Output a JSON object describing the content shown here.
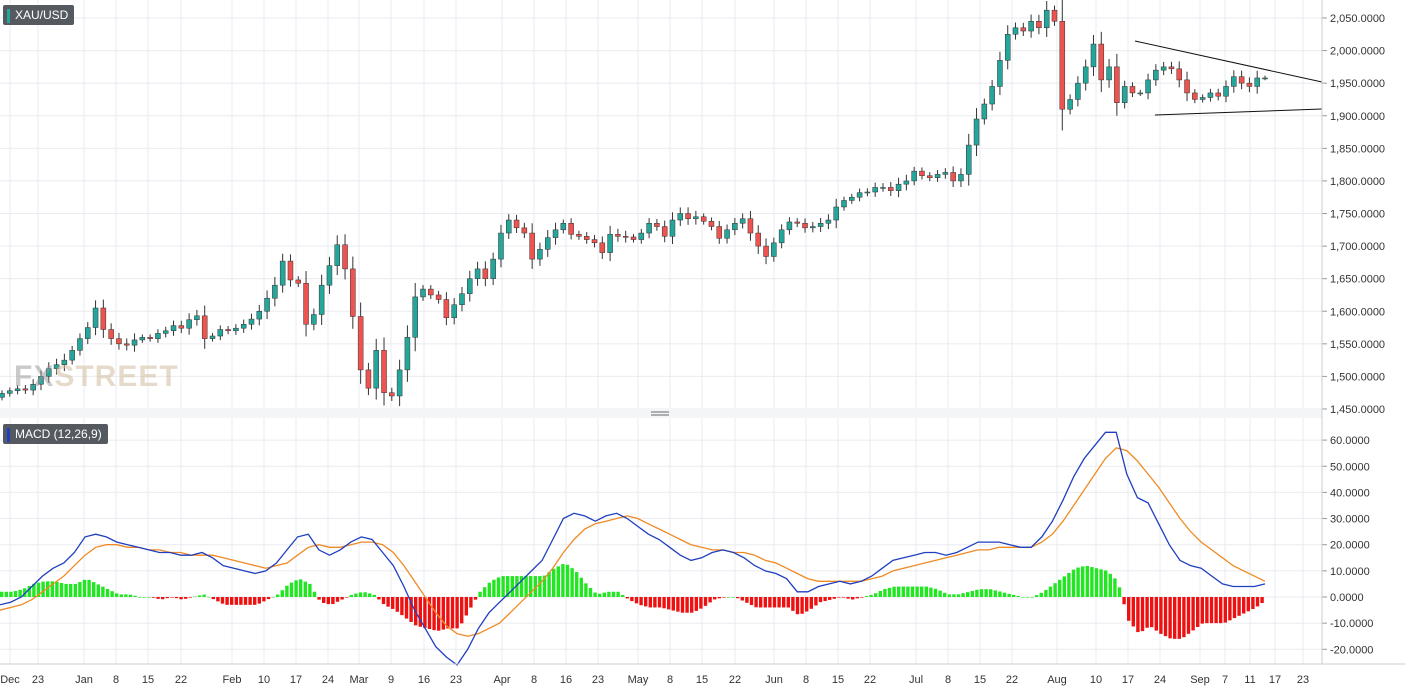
{
  "panels": {
    "main_label": "XAU/USD",
    "macd_label": "MACD (12,26,9)",
    "watermark_a": "FX",
    "watermark_b": "STREET"
  },
  "colors": {
    "up": "#26a69a",
    "down": "#ef5350",
    "macd_line": "#1f3fbf",
    "signal_line": "#f08a24",
    "hist_up": "#22e622",
    "hist_down": "#ee1111",
    "grid": "#e9ebf0"
  },
  "chart_data": [
    {
      "type": "candlestick",
      "title": "XAU/USD",
      "ylim": [
        1450,
        2070
      ],
      "y_ticks": [
        "2,050.0000",
        "2,000.0000",
        "1,950.0000",
        "1,900.0000",
        "1,850.0000",
        "1,800.0000",
        "1,750.0000",
        "1,700.0000",
        "1,650.0000",
        "1,600.0000",
        "1,550.0000",
        "1,500.0000",
        "1,450.0000"
      ],
      "x_ticks": [
        "Dec",
        "23",
        "Jan",
        "8",
        "15",
        "22",
        "Feb",
        "10",
        "17",
        "24",
        "Mar",
        "9",
        "16",
        "23",
        "Apr",
        "8",
        "16",
        "23",
        "May",
        "8",
        "15",
        "22",
        "Jun",
        "8",
        "15",
        "22",
        "Jul",
        "8",
        "15",
        "22",
        "Aug",
        "10",
        "17",
        "24",
        "Sep",
        "7",
        "11",
        "17",
        "23"
      ],
      "close": [
        1474,
        1478,
        1481,
        1479,
        1488,
        1500,
        1512,
        1518,
        1525,
        1540,
        1558,
        1575,
        1605,
        1572,
        1558,
        1550,
        1548,
        1556,
        1560,
        1558,
        1566,
        1570,
        1578,
        1574,
        1587,
        1593,
        1558,
        1562,
        1572,
        1570,
        1574,
        1580,
        1588,
        1600,
        1620,
        1640,
        1677,
        1648,
        1643,
        1580,
        1595,
        1640,
        1670,
        1702,
        1665,
        1592,
        1510,
        1482,
        1540,
        1475,
        1470,
        1510,
        1560,
        1622,
        1634,
        1625,
        1618,
        1590,
        1610,
        1627,
        1650,
        1665,
        1650,
        1680,
        1720,
        1740,
        1728,
        1720,
        1680,
        1695,
        1713,
        1725,
        1735,
        1718,
        1715,
        1710,
        1705,
        1690,
        1718,
        1715,
        1714,
        1710,
        1720,
        1735,
        1730,
        1715,
        1740,
        1750,
        1742,
        1745,
        1738,
        1730,
        1712,
        1725,
        1735,
        1742,
        1720,
        1700,
        1684,
        1705,
        1725,
        1737,
        1735,
        1728,
        1730,
        1735,
        1740,
        1760,
        1770,
        1775,
        1782,
        1783,
        1790,
        1790,
        1785,
        1795,
        1800,
        1815,
        1808,
        1805,
        1810,
        1813,
        1800,
        1810,
        1855,
        1895,
        1918,
        1945,
        1985,
        2025,
        2035,
        2030,
        2045,
        2035,
        2062,
        2045,
        1910,
        1925,
        1950,
        1975,
        2010,
        1955,
        1975,
        1920,
        1945,
        1935,
        1935,
        1955,
        1970,
        1975,
        1972,
        1955,
        1935,
        1925,
        1928,
        1935,
        1930,
        1945,
        1960,
        1950,
        1945,
        1958,
        1958
      ],
      "ohlc_note": "candles rendered from close series with derived open/high/low"
    },
    {
      "type": "macd",
      "title": "MACD (12,26,9)",
      "ylim": [
        -25,
        67
      ],
      "y_ticks": [
        "60.0000",
        "50.0000",
        "40.0000",
        "30.0000",
        "20.0000",
        "10.0000",
        "0.0000",
        "-10.0000",
        "-20.0000"
      ],
      "macd": [
        -3,
        -2,
        0,
        4,
        8,
        11,
        13,
        17,
        23,
        24,
        23,
        21,
        20,
        19,
        18,
        17,
        17,
        16,
        16,
        17,
        15,
        12,
        11,
        10,
        9,
        10,
        13,
        18,
        23,
        24,
        18,
        16,
        18,
        21,
        23,
        22,
        17,
        12,
        4,
        -5,
        -12,
        -19,
        -23,
        -26,
        -20,
        -12,
        -6,
        -2,
        2,
        6,
        10,
        14,
        22,
        30,
        32,
        31,
        29,
        31,
        32,
        30,
        27,
        24,
        22,
        19,
        16,
        14,
        15,
        17,
        18,
        17,
        15,
        12,
        10,
        9,
        7,
        2,
        2,
        4,
        5,
        6,
        5,
        6,
        8,
        11,
        14,
        15,
        16,
        17,
        17,
        16,
        17,
        19,
        21,
        21,
        21,
        20,
        19,
        19,
        23,
        29,
        37,
        46,
        53,
        58,
        63,
        63,
        47,
        38,
        36,
        28,
        20,
        14,
        12,
        11,
        8,
        5,
        4,
        4,
        4,
        5
      ],
      "signal": [
        -5,
        -4,
        -3,
        -1,
        2,
        5,
        8,
        12,
        16,
        19,
        20,
        20,
        19,
        19,
        18,
        18,
        17,
        17,
        16,
        16,
        16,
        15,
        14,
        13,
        12,
        11,
        12,
        13,
        16,
        19,
        20,
        19,
        19,
        20,
        21,
        21,
        20,
        17,
        12,
        6,
        0,
        -6,
        -11,
        -14,
        -15,
        -14,
        -12,
        -10,
        -6,
        -2,
        2,
        6,
        11,
        17,
        22,
        26,
        28,
        29,
        30,
        31,
        30,
        28,
        26,
        24,
        22,
        20,
        19,
        18,
        18,
        17,
        17,
        16,
        14,
        13,
        11,
        9,
        7,
        6,
        6,
        6,
        6,
        6,
        7,
        8,
        10,
        11,
        12,
        13,
        14,
        15,
        16,
        17,
        18,
        18,
        19,
        19,
        19,
        19,
        21,
        24,
        29,
        35,
        41,
        47,
        53,
        57,
        56,
        52,
        47,
        42,
        36,
        30,
        25,
        21,
        18,
        15,
        12,
        10,
        8,
        6
      ],
      "histogram": "macd minus signal"
    }
  ]
}
